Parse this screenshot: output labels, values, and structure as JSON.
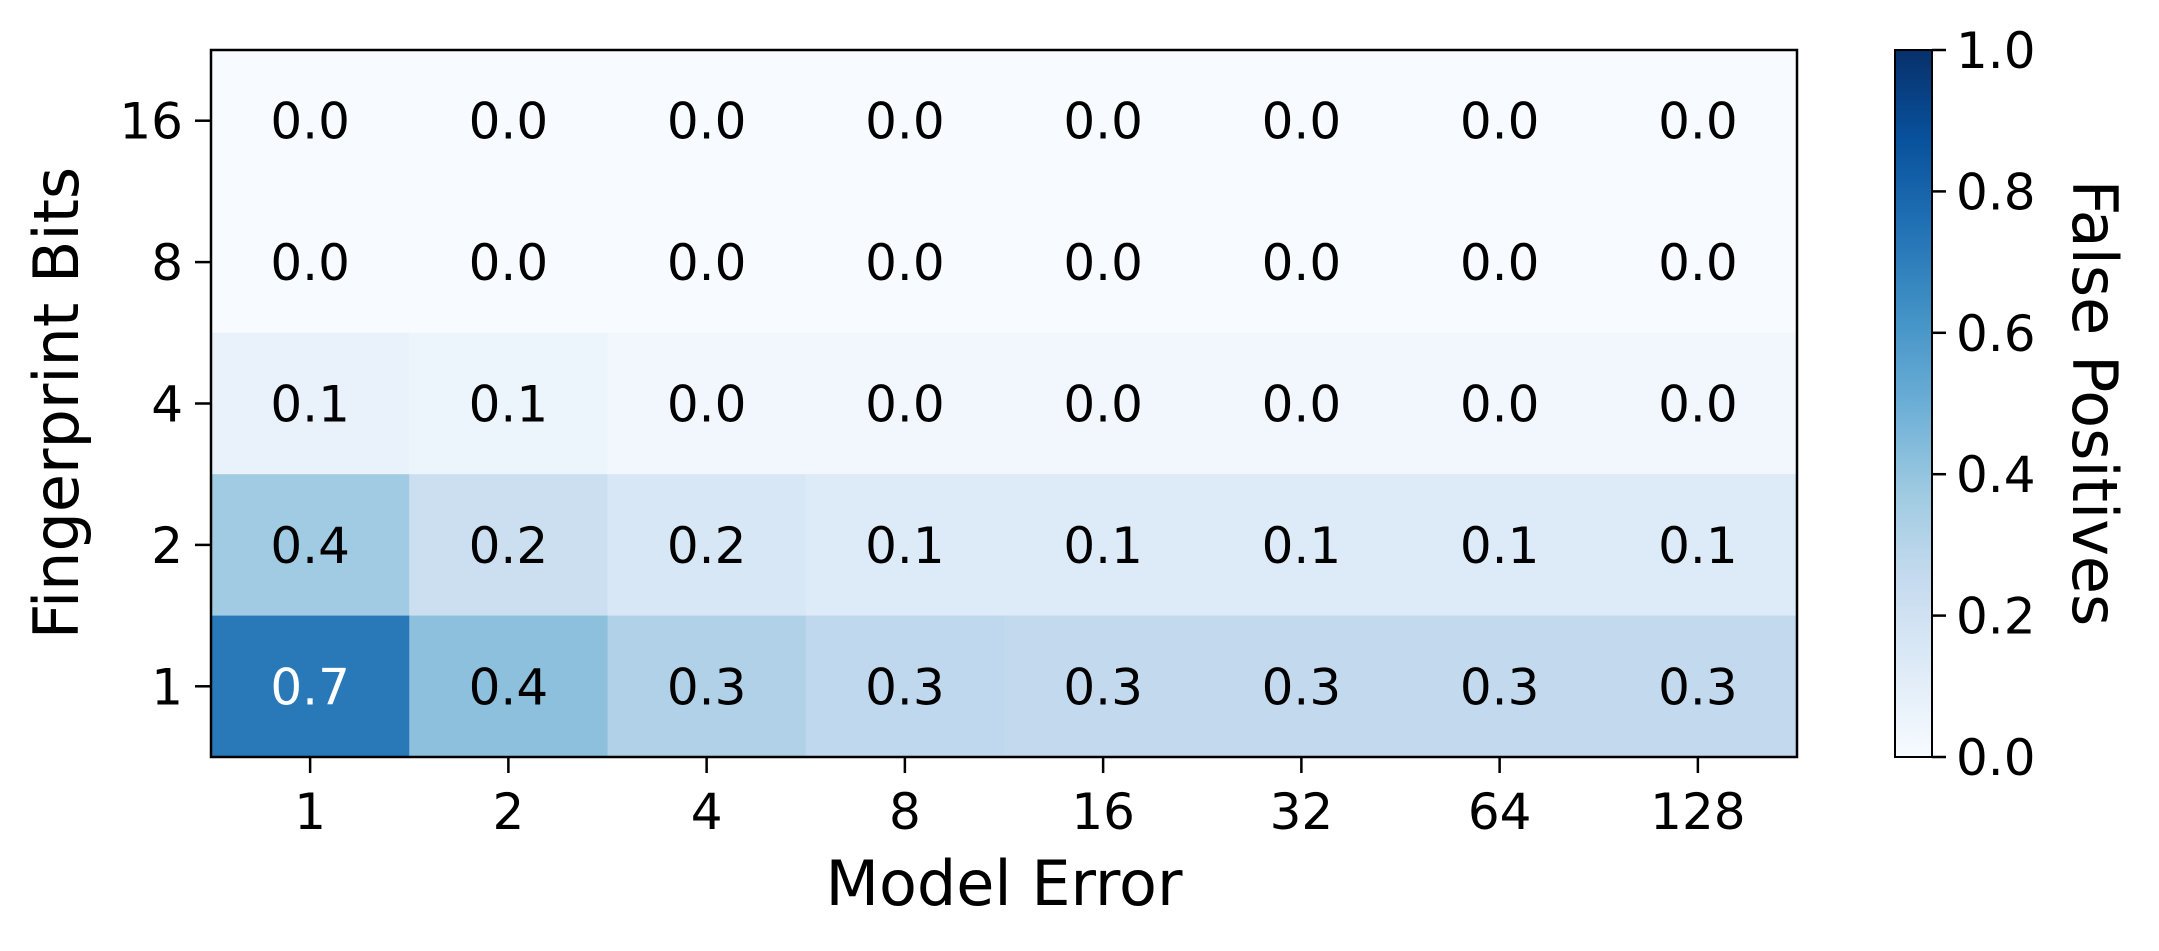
{
  "chart_data": {
    "type": "heatmap",
    "title": "",
    "xlabel": "Model Error",
    "ylabel": "Fingerprint Bits",
    "x_categories": [
      "1",
      "2",
      "4",
      "8",
      "16",
      "32",
      "64",
      "128"
    ],
    "y_categories": [
      "16",
      "8",
      "4",
      "2",
      "1"
    ],
    "cell_labels": [
      [
        "0.0",
        "0.0",
        "0.0",
        "0.0",
        "0.0",
        "0.0",
        "0.0",
        "0.0"
      ],
      [
        "0.0",
        "0.0",
        "0.0",
        "0.0",
        "0.0",
        "0.0",
        "0.0",
        "0.0"
      ],
      [
        "0.1",
        "0.1",
        "0.0",
        "0.0",
        "0.0",
        "0.0",
        "0.0",
        "0.0"
      ],
      [
        "0.4",
        "0.2",
        "0.2",
        "0.1",
        "0.1",
        "0.1",
        "0.1",
        "0.1"
      ],
      [
        "0.7",
        "0.4",
        "0.3",
        "0.3",
        "0.3",
        "0.3",
        "0.3",
        "0.3"
      ]
    ],
    "values": [
      [
        0.0,
        0.0,
        0.0,
        0.0,
        0.0,
        0.0,
        0.0,
        0.0
      ],
      [
        0.0,
        0.0,
        0.0,
        0.0,
        0.0,
        0.0,
        0.0,
        0.0
      ],
      [
        0.07,
        0.05,
        0.03,
        0.03,
        0.03,
        0.03,
        0.03,
        0.03
      ],
      [
        0.37,
        0.22,
        0.16,
        0.13,
        0.13,
        0.13,
        0.13,
        0.13
      ],
      [
        0.72,
        0.42,
        0.32,
        0.27,
        0.26,
        0.26,
        0.26,
        0.26
      ]
    ],
    "colorbar": {
      "label": "False Positives",
      "range": [
        0.0,
        1.0
      ],
      "ticks": [
        "0.0",
        "0.2",
        "0.4",
        "0.6",
        "0.8",
        "1.0"
      ],
      "colormap": "Blues"
    }
  }
}
